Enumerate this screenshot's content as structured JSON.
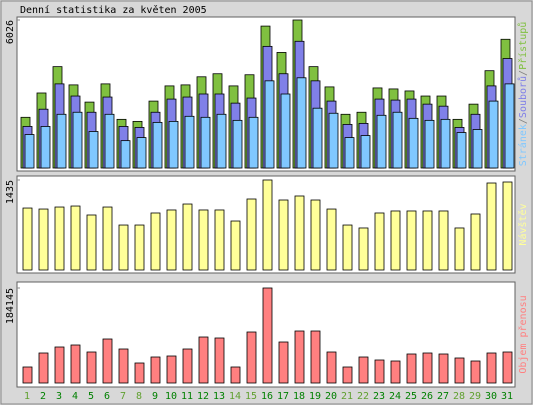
{
  "title": "Denní statistika za květen 2005",
  "separator": "/",
  "chart_data": [
    {
      "type": "bar",
      "categories": [
        "1",
        "2",
        "3",
        "4",
        "5",
        "6",
        "7",
        "8",
        "9",
        "10",
        "11",
        "12",
        "13",
        "14",
        "15",
        "16",
        "17",
        "18",
        "19",
        "20",
        "21",
        "22",
        "23",
        "24",
        "25",
        "26",
        "27",
        "28",
        "29",
        "30",
        "31"
      ],
      "category_colors": [
        "#60a030",
        "#008000",
        "#008000",
        "#008000",
        "#008000",
        "#008000",
        "#60a030",
        "#60a030",
        "#008000",
        "#008000",
        "#008000",
        "#008000",
        "#008000",
        "#60a030",
        "#60a030",
        "#008000",
        "#008000",
        "#008000",
        "#008000",
        "#008000",
        "#60a030",
        "#60a030",
        "#008000",
        "#008000",
        "#008000",
        "#008000",
        "#008000",
        "#60a030",
        "#60a030",
        "#008000",
        "#008000"
      ],
      "ylim": [
        0,
        6026
      ],
      "yticks": [
        6026
      ],
      "series": [
        {
          "name": "Přístupů",
          "color": "#80c040",
          "values": [
            2064,
            3054,
            4127,
            3384,
            2683,
            3425,
            1981,
            1898,
            2724,
            3343,
            3384,
            3714,
            3838,
            3343,
            3797,
            5778,
            4705,
            6026,
            4127,
            3302,
            2187,
            2270,
            3260,
            3219,
            3137,
            2930,
            2930,
            1981,
            2600,
            3962,
            5241
          ]
        },
        {
          "name": "Souborů",
          "color": "#8080e8",
          "values": [
            1692,
            2394,
            3425,
            2930,
            2270,
            2889,
            1692,
            1651,
            2270,
            2806,
            2889,
            3013,
            3013,
            2641,
            2848,
            4952,
            3838,
            5159,
            3549,
            2724,
            1775,
            1816,
            2806,
            2765,
            2806,
            2600,
            2517,
            1651,
            2187,
            3343,
            4457
          ]
        },
        {
          "name": "Stránek",
          "color": "#80c8ff",
          "values": [
            1362,
            1692,
            2187,
            2270,
            1486,
            2187,
            1114,
            1238,
            1857,
            1898,
            2105,
            2064,
            2187,
            1940,
            2064,
            3549,
            3013,
            3673,
            2435,
            2229,
            1238,
            1321,
            2146,
            2270,
            2022,
            1940,
            1981,
            1444,
            1568,
            2724,
            3425
          ]
        }
      ]
    },
    {
      "type": "bar",
      "ylim": [
        0,
        1435
      ],
      "yticks": [
        1435
      ],
      "series": [
        {
          "name": "Návštěv",
          "color": "#ffff99",
          "values": [
            988,
            972,
            1004,
            1020,
            877,
            1004,
            717,
            717,
            909,
            957,
            1052,
            957,
            957,
            781,
            1132,
            1435,
            1116,
            1180,
            1116,
            972,
            717,
            670,
            909,
            941,
            941,
            941,
            941,
            670,
            893,
            1387,
            1403
          ]
        }
      ]
    },
    {
      "type": "bar",
      "ylim": [
        0,
        184145
      ],
      "yticks": [
        184145
      ],
      "series": [
        {
          "name": "Objem přenosu",
          "color": "#ff8080",
          "values": [
            31008,
            58140,
            69768,
            73644,
            60078,
            85272,
            65892,
            38760,
            50388,
            52326,
            65892,
            89148,
            87210,
            31008,
            98838,
            184145,
            79458,
            100776,
            100776,
            60078,
            31008,
            50388,
            44574,
            42636,
            56202,
            58140,
            56202,
            48450,
            42636,
            58140,
            60078
          ]
        }
      ]
    }
  ]
}
